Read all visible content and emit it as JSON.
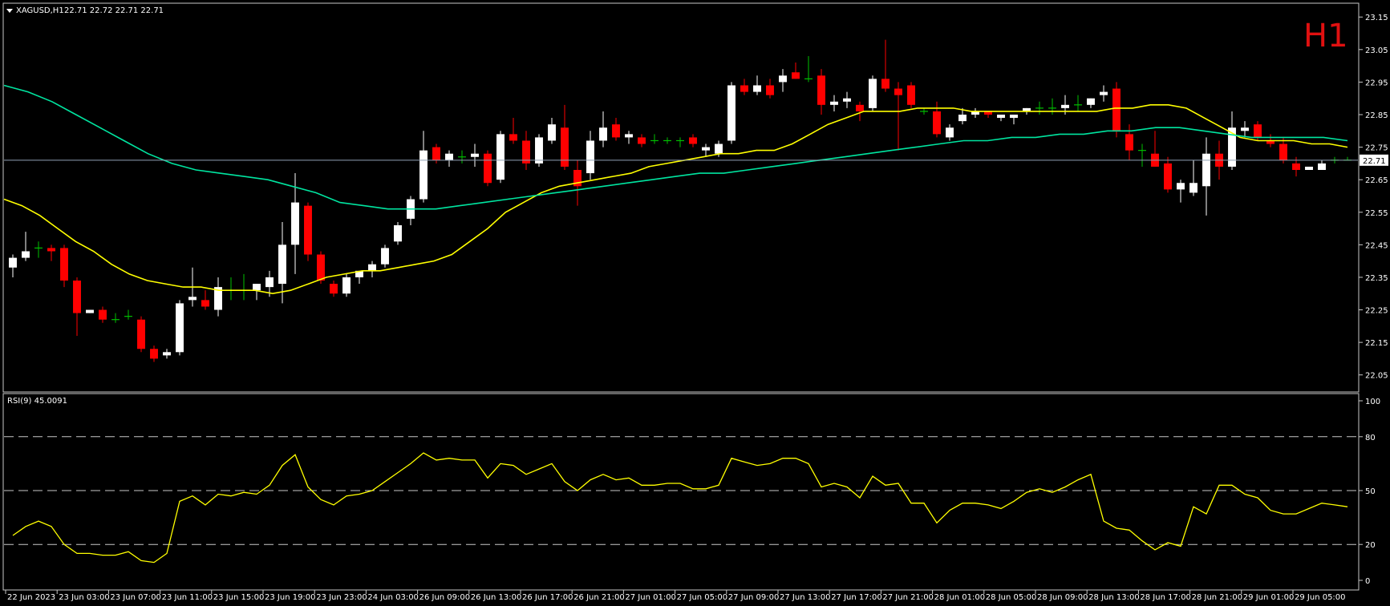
{
  "header": {
    "symbol": "XAGUSD,H1",
    "ohlc": "22.71 22.72 22.71 22.71",
    "timeframe_badge": "H1",
    "price_tag": "22.71"
  },
  "rsi_panel": {
    "title": "RSI(9) 45.0091",
    "levels": [
      80,
      50,
      20
    ],
    "tick_labels": [
      "100",
      "80",
      "50",
      "20",
      "0"
    ]
  },
  "colors": {
    "background": "#000000",
    "bull_candle": "#ffffff",
    "bear_candle": "#ff0000",
    "doji": "#00c000",
    "ma_fast": "#ffff00",
    "ma_slow": "#00e5a0",
    "rsi_line": "#ffff00",
    "axis_text": "#ffffff",
    "timeframe_badge": "#e01010"
  },
  "chart_data": [
    {
      "type": "candlestick",
      "y_ticks": [
        23.15,
        23.05,
        22.95,
        22.85,
        22.75,
        22.65,
        22.55,
        22.45,
        22.35,
        22.25,
        22.15,
        22.05
      ],
      "y_tick_labels": [
        "23.15",
        "23.05",
        "22.95",
        "22.85",
        "22.75",
        "22.65",
        "22.55",
        "22.45",
        "22.35",
        "22.25",
        "22.15",
        "22.05"
      ],
      "ylim": [
        22.0,
        23.19
      ],
      "current_price": 22.71,
      "x_tick_labels": [
        "22 Jun 2023",
        "23 Jun 03:00",
        "23 Jun 07:00",
        "23 Jun 11:00",
        "23 Jun 15:00",
        "23 Jun 19:00",
        "23 Jun 23:00",
        "24 Jun 03:00",
        "26 Jun 09:00",
        "26 Jun 13:00",
        "26 Jun 17:00",
        "26 Jun 21:00",
        "27 Jun 01:00",
        "27 Jun 05:00",
        "27 Jun 09:00",
        "27 Jun 13:00",
        "27 Jun 17:00",
        "27 Jun 21:00",
        "28 Jun 01:00",
        "28 Jun 05:00",
        "28 Jun 09:00",
        "28 Jun 13:00",
        "28 Jun 17:00",
        "28 Jun 21:00",
        "29 Jun 01:00",
        "29 Jun 05:00"
      ],
      "candles": [
        {
          "o": 22.38,
          "h": 22.42,
          "l": 22.35,
          "c": 22.41
        },
        {
          "o": 22.41,
          "h": 22.49,
          "l": 22.4,
          "c": 22.43
        },
        {
          "o": 22.44,
          "h": 22.46,
          "l": 22.41,
          "c": 22.44
        },
        {
          "o": 22.44,
          "h": 22.45,
          "l": 22.4,
          "c": 22.43
        },
        {
          "o": 22.44,
          "h": 22.45,
          "l": 22.32,
          "c": 22.34
        },
        {
          "o": 22.34,
          "h": 22.35,
          "l": 22.17,
          "c": 22.24
        },
        {
          "o": 22.24,
          "h": 22.25,
          "l": 22.24,
          "c": 22.25
        },
        {
          "o": 22.25,
          "h": 22.26,
          "l": 22.21,
          "c": 22.22
        },
        {
          "o": 22.22,
          "h": 22.24,
          "l": 22.21,
          "c": 22.22
        },
        {
          "o": 22.23,
          "h": 22.25,
          "l": 22.22,
          "c": 22.23
        },
        {
          "o": 22.22,
          "h": 22.23,
          "l": 22.12,
          "c": 22.13
        },
        {
          "o": 22.13,
          "h": 22.14,
          "l": 22.09,
          "c": 22.1
        },
        {
          "o": 22.11,
          "h": 22.13,
          "l": 22.1,
          "c": 22.12
        },
        {
          "o": 22.12,
          "h": 22.28,
          "l": 22.11,
          "c": 22.27
        },
        {
          "o": 22.28,
          "h": 22.38,
          "l": 22.26,
          "c": 22.29
        },
        {
          "o": 22.28,
          "h": 22.31,
          "l": 22.25,
          "c": 22.26
        },
        {
          "o": 22.25,
          "h": 22.35,
          "l": 22.23,
          "c": 22.32
        },
        {
          "o": 22.31,
          "h": 22.35,
          "l": 22.28,
          "c": 22.31
        },
        {
          "o": 22.31,
          "h": 22.36,
          "l": 22.28,
          "c": 22.31
        },
        {
          "o": 22.31,
          "h": 22.33,
          "l": 22.28,
          "c": 22.33
        },
        {
          "o": 22.32,
          "h": 22.37,
          "l": 22.29,
          "c": 22.35
        },
        {
          "o": 22.33,
          "h": 22.52,
          "l": 22.27,
          "c": 22.45
        },
        {
          "o": 22.45,
          "h": 22.67,
          "l": 22.36,
          "c": 22.58
        },
        {
          "o": 22.57,
          "h": 22.58,
          "l": 22.4,
          "c": 22.42
        },
        {
          "o": 22.42,
          "h": 22.43,
          "l": 22.33,
          "c": 22.34
        },
        {
          "o": 22.33,
          "h": 22.34,
          "l": 22.29,
          "c": 22.3
        },
        {
          "o": 22.3,
          "h": 22.36,
          "l": 22.29,
          "c": 22.35
        },
        {
          "o": 22.35,
          "h": 22.37,
          "l": 22.33,
          "c": 22.37
        },
        {
          "o": 22.37,
          "h": 22.4,
          "l": 22.35,
          "c": 22.39
        },
        {
          "o": 22.39,
          "h": 22.45,
          "l": 22.38,
          "c": 22.44
        },
        {
          "o": 22.46,
          "h": 22.52,
          "l": 22.45,
          "c": 22.51
        },
        {
          "o": 22.53,
          "h": 22.6,
          "l": 22.51,
          "c": 22.59
        },
        {
          "o": 22.59,
          "h": 22.8,
          "l": 22.58,
          "c": 22.74
        },
        {
          "o": 22.75,
          "h": 22.76,
          "l": 22.7,
          "c": 22.71
        },
        {
          "o": 22.71,
          "h": 22.74,
          "l": 22.69,
          "c": 22.73
        },
        {
          "o": 22.72,
          "h": 22.74,
          "l": 22.7,
          "c": 22.72
        },
        {
          "o": 22.72,
          "h": 22.76,
          "l": 22.69,
          "c": 22.73
        },
        {
          "o": 22.73,
          "h": 22.74,
          "l": 22.63,
          "c": 22.64
        },
        {
          "o": 22.65,
          "h": 22.8,
          "l": 22.64,
          "c": 22.79
        },
        {
          "o": 22.79,
          "h": 22.84,
          "l": 22.76,
          "c": 22.77
        },
        {
          "o": 22.77,
          "h": 22.8,
          "l": 22.68,
          "c": 22.7
        },
        {
          "o": 22.7,
          "h": 22.79,
          "l": 22.69,
          "c": 22.78
        },
        {
          "o": 22.77,
          "h": 22.84,
          "l": 22.76,
          "c": 22.82
        },
        {
          "o": 22.81,
          "h": 22.88,
          "l": 22.68,
          "c": 22.69
        },
        {
          "o": 22.68,
          "h": 22.71,
          "l": 22.57,
          "c": 22.63
        },
        {
          "o": 22.67,
          "h": 22.8,
          "l": 22.65,
          "c": 22.77
        },
        {
          "o": 22.77,
          "h": 22.86,
          "l": 22.75,
          "c": 22.81
        },
        {
          "o": 22.82,
          "h": 22.84,
          "l": 22.77,
          "c": 22.78
        },
        {
          "o": 22.78,
          "h": 22.8,
          "l": 22.76,
          "c": 22.79
        },
        {
          "o": 22.78,
          "h": 22.79,
          "l": 22.75,
          "c": 22.76
        },
        {
          "o": 22.77,
          "h": 22.79,
          "l": 22.76,
          "c": 22.77
        },
        {
          "o": 22.77,
          "h": 22.78,
          "l": 22.76,
          "c": 22.77
        },
        {
          "o": 22.77,
          "h": 22.78,
          "l": 22.75,
          "c": 22.77
        },
        {
          "o": 22.78,
          "h": 22.79,
          "l": 22.75,
          "c": 22.76
        },
        {
          "o": 22.74,
          "h": 22.76,
          "l": 22.72,
          "c": 22.75
        },
        {
          "o": 22.73,
          "h": 22.77,
          "l": 22.72,
          "c": 22.76
        },
        {
          "o": 22.77,
          "h": 22.95,
          "l": 22.76,
          "c": 22.94
        },
        {
          "o": 22.94,
          "h": 22.96,
          "l": 22.91,
          "c": 22.92
        },
        {
          "o": 22.92,
          "h": 22.97,
          "l": 22.91,
          "c": 22.94
        },
        {
          "o": 22.94,
          "h": 22.96,
          "l": 22.9,
          "c": 22.91
        },
        {
          "o": 22.95,
          "h": 22.99,
          "l": 22.92,
          "c": 22.97
        },
        {
          "o": 22.98,
          "h": 23.01,
          "l": 22.96,
          "c": 22.96
        },
        {
          "o": 22.96,
          "h": 23.03,
          "l": 22.95,
          "c": 22.96
        },
        {
          "o": 22.97,
          "h": 22.99,
          "l": 22.85,
          "c": 22.88
        },
        {
          "o": 22.88,
          "h": 22.91,
          "l": 22.86,
          "c": 22.89
        },
        {
          "o": 22.89,
          "h": 22.92,
          "l": 22.87,
          "c": 22.9
        },
        {
          "o": 22.88,
          "h": 22.89,
          "l": 22.83,
          "c": 22.86
        },
        {
          "o": 22.87,
          "h": 22.97,
          "l": 22.86,
          "c": 22.96
        },
        {
          "o": 22.96,
          "h": 23.08,
          "l": 22.92,
          "c": 22.93
        },
        {
          "o": 22.93,
          "h": 22.95,
          "l": 22.74,
          "c": 22.91
        },
        {
          "o": 22.94,
          "h": 22.95,
          "l": 22.87,
          "c": 22.88
        },
        {
          "o": 22.86,
          "h": 22.87,
          "l": 22.85,
          "c": 22.86
        },
        {
          "o": 22.86,
          "h": 22.89,
          "l": 22.78,
          "c": 22.79
        },
        {
          "o": 22.78,
          "h": 22.82,
          "l": 22.77,
          "c": 22.81
        },
        {
          "o": 22.83,
          "h": 22.87,
          "l": 22.82,
          "c": 22.85
        },
        {
          "o": 22.85,
          "h": 22.87,
          "l": 22.84,
          "c": 22.86
        },
        {
          "o": 22.86,
          "h": 22.86,
          "l": 22.84,
          "c": 22.85
        },
        {
          "o": 22.84,
          "h": 22.85,
          "l": 22.83,
          "c": 22.85
        },
        {
          "o": 22.84,
          "h": 22.85,
          "l": 22.82,
          "c": 22.85
        },
        {
          "o": 22.86,
          "h": 22.87,
          "l": 22.85,
          "c": 22.87
        },
        {
          "o": 22.87,
          "h": 22.89,
          "l": 22.85,
          "c": 22.87
        },
        {
          "o": 22.87,
          "h": 22.9,
          "l": 22.85,
          "c": 22.87
        },
        {
          "o": 22.87,
          "h": 22.91,
          "l": 22.85,
          "c": 22.88
        },
        {
          "o": 22.88,
          "h": 22.91,
          "l": 22.86,
          "c": 22.88
        },
        {
          "o": 22.88,
          "h": 22.9,
          "l": 22.87,
          "c": 22.9
        },
        {
          "o": 22.91,
          "h": 22.94,
          "l": 22.89,
          "c": 22.92
        },
        {
          "o": 22.93,
          "h": 22.95,
          "l": 22.78,
          "c": 22.8
        },
        {
          "o": 22.79,
          "h": 22.82,
          "l": 22.71,
          "c": 22.74
        },
        {
          "o": 22.74,
          "h": 22.76,
          "l": 22.69,
          "c": 22.74
        },
        {
          "o": 22.73,
          "h": 22.8,
          "l": 22.69,
          "c": 22.69
        },
        {
          "o": 22.7,
          "h": 22.72,
          "l": 22.61,
          "c": 22.62
        },
        {
          "o": 22.62,
          "h": 22.65,
          "l": 22.58,
          "c": 22.64
        },
        {
          "o": 22.61,
          "h": 22.71,
          "l": 22.6,
          "c": 22.64
        },
        {
          "o": 22.63,
          "h": 22.78,
          "l": 22.54,
          "c": 22.73
        },
        {
          "o": 22.73,
          "h": 22.77,
          "l": 22.65,
          "c": 22.69
        },
        {
          "o": 22.69,
          "h": 22.86,
          "l": 22.68,
          "c": 22.81
        },
        {
          "o": 22.8,
          "h": 22.83,
          "l": 22.78,
          "c": 22.81
        },
        {
          "o": 22.82,
          "h": 22.83,
          "l": 22.77,
          "c": 22.78
        },
        {
          "o": 22.77,
          "h": 22.79,
          "l": 22.75,
          "c": 22.76
        },
        {
          "o": 22.76,
          "h": 22.78,
          "l": 22.7,
          "c": 22.71
        },
        {
          "o": 22.7,
          "h": 22.72,
          "l": 22.66,
          "c": 22.68
        },
        {
          "o": 22.68,
          "h": 22.69,
          "l": 22.68,
          "c": 22.69
        },
        {
          "o": 22.68,
          "h": 22.71,
          "l": 22.68,
          "c": 22.7
        },
        {
          "o": 22.71,
          "h": 22.72,
          "l": 22.7,
          "c": 22.71
        },
        {
          "o": 22.71,
          "h": 22.72,
          "l": 22.71,
          "c": 22.71
        }
      ],
      "series": [
        {
          "type": "line",
          "color": "#ffff00",
          "values": [
            22.59,
            22.57,
            22.54,
            22.5,
            22.46,
            22.43,
            22.39,
            22.36,
            22.34,
            22.33,
            22.32,
            22.32,
            22.31,
            22.31,
            22.31,
            22.3,
            22.31,
            22.33,
            22.35,
            22.36,
            22.37,
            22.37,
            22.38,
            22.39,
            22.4,
            22.42,
            22.46,
            22.5,
            22.55,
            22.58,
            22.61,
            22.63,
            22.64,
            22.65,
            22.66,
            22.67,
            22.69,
            22.7,
            22.71,
            22.72,
            22.73,
            22.73,
            22.74,
            22.74,
            22.76,
            22.79,
            22.82,
            22.84,
            22.86,
            22.86,
            22.86,
            22.87,
            22.87,
            22.87,
            22.86,
            22.86,
            22.86,
            22.86,
            22.86,
            22.86,
            22.86,
            22.86,
            22.87,
            22.87,
            22.88,
            22.88,
            22.87,
            22.84,
            22.81,
            22.78,
            22.77,
            22.77,
            22.77,
            22.76,
            22.76,
            22.75
          ]
        },
        {
          "type": "line",
          "color": "#00e5a0",
          "values": [
            22.94,
            22.92,
            22.89,
            22.85,
            22.81,
            22.77,
            22.73,
            22.7,
            22.68,
            22.67,
            22.66,
            22.65,
            22.63,
            22.61,
            22.58,
            22.57,
            22.56,
            22.56,
            22.56,
            22.57,
            22.58,
            22.59,
            22.6,
            22.61,
            22.62,
            22.63,
            22.64,
            22.65,
            22.66,
            22.67,
            22.67,
            22.68,
            22.69,
            22.7,
            22.71,
            22.72,
            22.73,
            22.74,
            22.75,
            22.76,
            22.77,
            22.77,
            22.78,
            22.78,
            22.79,
            22.79,
            22.8,
            22.8,
            22.81,
            22.81,
            22.8,
            22.79,
            22.78,
            22.78,
            22.78,
            22.78,
            22.77
          ]
        }
      ]
    },
    {
      "type": "line",
      "title": "RSI(9) 45.0091",
      "ylim": [
        0,
        100
      ],
      "y_ticks": [
        100,
        80,
        50,
        20,
        0
      ],
      "values": [
        25,
        30,
        33,
        30,
        20,
        15,
        15,
        14,
        14,
        16,
        11,
        10,
        15,
        44,
        47,
        42,
        48,
        47,
        49,
        48,
        53,
        64,
        70,
        52,
        45,
        42,
        47,
        48,
        50,
        55,
        60,
        65,
        71,
        67,
        68,
        67,
        67,
        57,
        65,
        64,
        59,
        62,
        65,
        55,
        50,
        56,
        59,
        56,
        57,
        53,
        53,
        54,
        54,
        51,
        51,
        53,
        68,
        66,
        64,
        65,
        68,
        68,
        65,
        52,
        54,
        52,
        46,
        58,
        53,
        54,
        43,
        43,
        32,
        39,
        43,
        43,
        42,
        40,
        44,
        49,
        51,
        49,
        52,
        56,
        59,
        33,
        29,
        28,
        22,
        17,
        21,
        19,
        41,
        37,
        53,
        53,
        48,
        46,
        39,
        37,
        37,
        40,
        43,
        42,
        41
      ]
    }
  ]
}
